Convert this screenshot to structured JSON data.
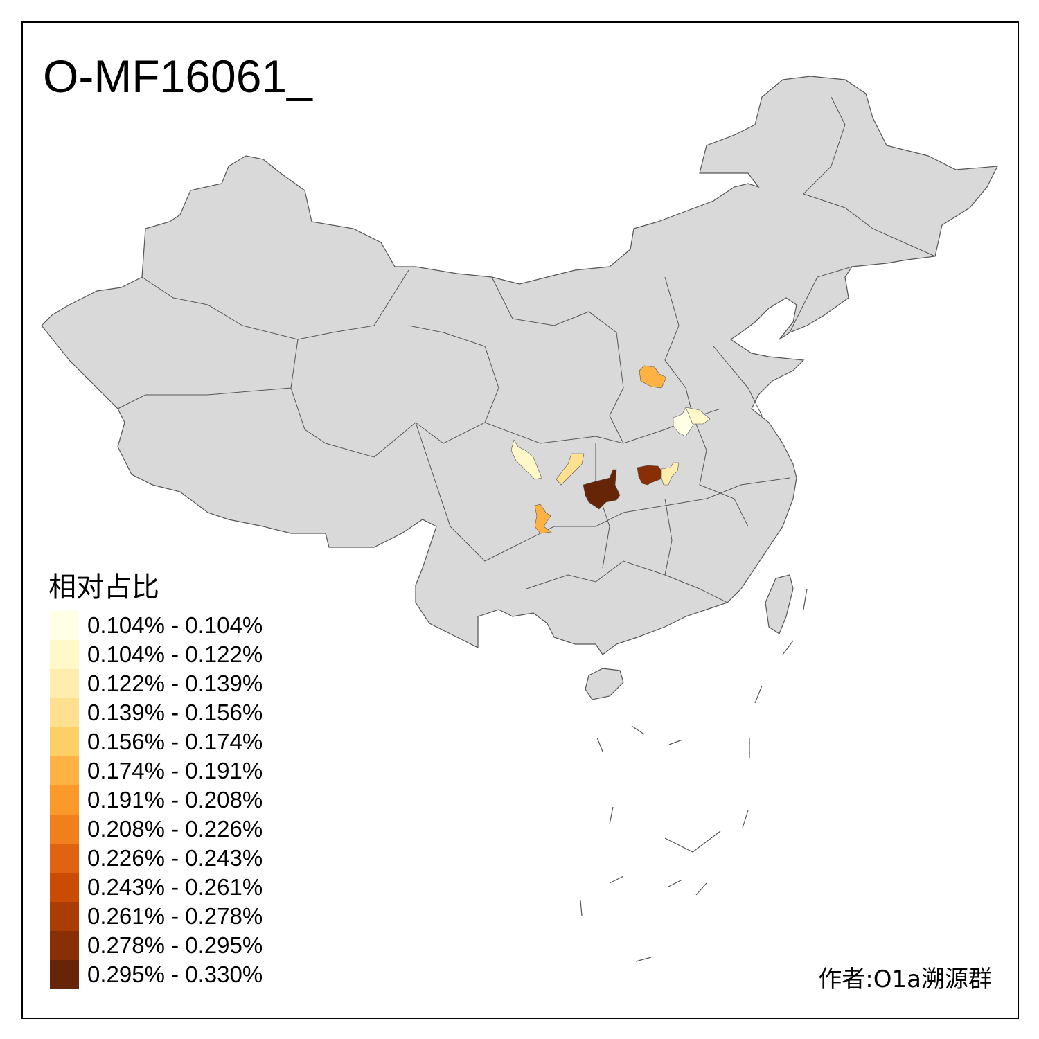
{
  "title": "O-MF16061_",
  "legend": {
    "title": "相对占比",
    "items": [
      {
        "label": "0.104% - 0.104%",
        "color": "#FFFFE5"
      },
      {
        "label": "0.104% - 0.122%",
        "color": "#FFF8C8"
      },
      {
        "label": "0.122% - 0.139%",
        "color": "#FEEDAC"
      },
      {
        "label": "0.139% - 0.156%",
        "color": "#FEE08E"
      },
      {
        "label": "0.156% - 0.174%",
        "color": "#FECE67"
      },
      {
        "label": "0.174% - 0.191%",
        "color": "#FEB244"
      },
      {
        "label": "0.191% - 0.208%",
        "color": "#FB992B"
      },
      {
        "label": "0.208% - 0.226%",
        "color": "#F07F1E"
      },
      {
        "label": "0.226% - 0.243%",
        "color": "#E06311"
      },
      {
        "label": "0.243% - 0.261%",
        "color": "#CA4C03"
      },
      {
        "label": "0.261% - 0.278%",
        "color": "#AA3D03"
      },
      {
        "label": "0.278% - 0.295%",
        "color": "#882F05"
      },
      {
        "label": "0.295% - 0.330%",
        "color": "#662506"
      }
    ]
  },
  "author": "作者:O1a溯源群",
  "colors": {
    "land": "#D9D9D9",
    "border": "#555555"
  }
}
